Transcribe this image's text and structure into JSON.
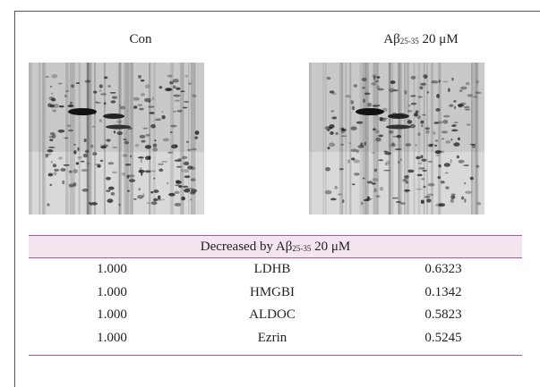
{
  "figure": {
    "panels": [
      {
        "label": "Con"
      },
      {
        "label": {
          "main": "Aβ",
          "subscript": "25-35",
          "rest": "20 μM"
        }
      }
    ]
  },
  "table": {
    "header": {
      "main": "Decreased by Aβ",
      "subscript": "25-35",
      "rest": "20 μM"
    },
    "rows": [
      [
        "1.000",
        "LDHB",
        "0.6323"
      ],
      [
        "1.000",
        "HMGBI",
        "0.1342"
      ],
      [
        "1.000",
        "ALDOC",
        "0.5823"
      ],
      [
        "1.000",
        "Ezrin",
        "0.5245"
      ]
    ]
  }
}
